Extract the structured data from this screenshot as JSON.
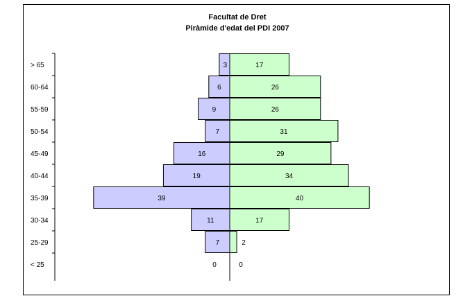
{
  "chart_data": {
    "type": "bar",
    "orientation": "horizontal",
    "subtype": "population-pyramid",
    "title": "Facultat de Dret",
    "subtitle": "Piràmide d'edat del PDI 2007",
    "categories": [
      "> 65",
      "60-64",
      "55-59",
      "50-54",
      "45-49",
      "40-44",
      "35-39",
      "30-34",
      "25-29",
      "< 25"
    ],
    "series": [
      {
        "side": "left",
        "color": "#ccccff",
        "values": [
          3,
          6,
          9,
          7,
          16,
          19,
          39,
          11,
          7,
          0
        ]
      },
      {
        "side": "right",
        "color": "#ccffcc",
        "values": [
          17,
          26,
          26,
          31,
          29,
          34,
          40,
          17,
          2,
          0
        ]
      }
    ],
    "legend": "none",
    "grid": false
  }
}
